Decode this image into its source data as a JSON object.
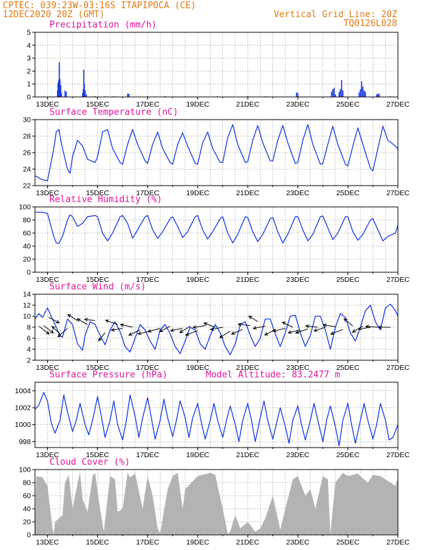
{
  "header": {
    "line1": "CPTEC:   039:23W-03:16S  ITAPIPOCA (CE)",
    "line2": "12DEC2020 20Z (GMT)",
    "grid_line": "Vertical Grid Line: 20Z",
    "code": "TQ0126L028"
  },
  "colors": {
    "header": "#e07a12",
    "title": "#e0159a",
    "series": "#1a3be0",
    "cloud": "#b3b3b3",
    "wind_arrow": "#000000"
  },
  "chart_data": [
    {
      "id": "precip",
      "type": "bar",
      "title": "Precipitation (mm/h)",
      "ylim": [
        0,
        5
      ],
      "yticks": [
        0,
        1,
        2,
        3,
        4,
        5
      ],
      "xlim": [
        0,
        14.5
      ],
      "xticks": [
        "13DEC",
        "15DEC",
        "17DEC",
        "19DEC",
        "21DEC",
        "23DEC",
        "25DEC",
        "27DEC"
      ],
      "grid": true,
      "bars": [
        [
          0.9,
          0.5
        ],
        [
          0.92,
          1.1
        ],
        [
          0.95,
          1.3
        ],
        [
          0.97,
          2.7
        ],
        [
          1.0,
          1.4
        ],
        [
          1.03,
          0.9
        ],
        [
          1.06,
          0.3
        ],
        [
          1.2,
          0.5
        ],
        [
          1.25,
          0.4
        ],
        [
          1.9,
          0.3
        ],
        [
          1.93,
          0.6
        ],
        [
          1.95,
          2.1
        ],
        [
          1.97,
          1.0
        ],
        [
          2.0,
          0.5
        ],
        [
          2.05,
          0.2
        ],
        [
          2.4,
          0.05
        ],
        [
          2.8,
          0.05
        ],
        [
          3.15,
          0.05
        ],
        [
          3.7,
          0.25
        ],
        [
          3.75,
          0.25
        ],
        [
          4.5,
          0.05
        ],
        [
          5.2,
          0.05
        ],
        [
          6.0,
          0.05
        ],
        [
          7.3,
          0.05
        ],
        [
          8.5,
          0.05
        ],
        [
          9.2,
          0.05
        ],
        [
          10.45,
          0.35
        ],
        [
          10.5,
          0.3
        ],
        [
          11.85,
          0.4
        ],
        [
          11.9,
          0.6
        ],
        [
          11.95,
          0.7
        ],
        [
          12.0,
          0.2
        ],
        [
          12.15,
          0.4
        ],
        [
          12.2,
          0.6
        ],
        [
          12.25,
          1.3
        ],
        [
          12.3,
          0.5
        ],
        [
          12.95,
          0.35
        ],
        [
          13.0,
          0.6
        ],
        [
          13.05,
          1.2
        ],
        [
          13.1,
          0.8
        ],
        [
          13.15,
          0.5
        ],
        [
          13.2,
          0.4
        ],
        [
          13.65,
          0.2
        ],
        [
          13.7,
          0.25
        ],
        [
          13.75,
          0.25
        ],
        [
          14.2,
          0.05
        ]
      ]
    },
    {
      "id": "temperature",
      "type": "line",
      "title": "Surface Temperature (nC)",
      "ylim": [
        22,
        30
      ],
      "yticks": [
        22,
        24,
        26,
        28,
        30
      ],
      "xlim": [
        0,
        14.5
      ],
      "xticks": [
        "13DEC",
        "15DEC",
        "17DEC",
        "19DEC",
        "21DEC",
        "23DEC",
        "25DEC",
        "27DEC"
      ],
      "grid": true,
      "x": [
        0,
        0.3,
        0.5,
        0.75,
        0.85,
        0.95,
        1.1,
        1.3,
        1.4,
        1.5,
        1.7,
        1.9,
        2.1,
        2.4,
        2.5,
        2.7,
        2.9,
        3.1,
        3.4,
        3.5,
        3.7,
        3.9,
        4.1,
        4.4,
        4.5,
        4.7,
        4.9,
        5.1,
        5.4,
        5.5,
        5.7,
        5.9,
        6.1,
        6.4,
        6.5,
        6.7,
        6.9,
        7.1,
        7.4,
        7.5,
        7.7,
        7.9,
        8.1,
        8.4,
        8.5,
        8.7,
        8.9,
        9.1,
        9.4,
        9.5,
        9.7,
        9.9,
        10.1,
        10.4,
        10.5,
        10.7,
        10.9,
        11.1,
        11.4,
        11.5,
        11.7,
        11.9,
        12.1,
        12.4,
        12.5,
        12.7,
        12.9,
        13.1,
        13.4,
        13.5,
        13.7,
        13.9,
        14.1,
        14.4,
        14.5
      ],
      "y": [
        23.2,
        22.7,
        22.6,
        26.5,
        28.5,
        28.8,
        26.5,
        24.0,
        23.5,
        25.5,
        27.5,
        26.8,
        25.2,
        24.8,
        25.5,
        28.5,
        28.8,
        26.5,
        24.8,
        24.6,
        27.0,
        28.8,
        27.0,
        25.0,
        24.7,
        27.0,
        28.5,
        26.5,
        24.8,
        24.6,
        27.0,
        28.4,
        26.8,
        24.7,
        24.6,
        27.2,
        28.5,
        26.5,
        24.8,
        24.8,
        27.8,
        29.4,
        27.0,
        24.8,
        24.9,
        27.5,
        29.3,
        27.2,
        25.0,
        25.0,
        27.5,
        29.3,
        27.2,
        24.7,
        24.8,
        27.5,
        29.4,
        27.0,
        24.6,
        24.7,
        27.0,
        29.2,
        27.0,
        24.6,
        24.4,
        26.8,
        29.0,
        27.0,
        24.1,
        23.8,
        26.5,
        29.2,
        27.5,
        26.8,
        26.4
      ]
    },
    {
      "id": "humidity",
      "type": "line",
      "title": "Relative Humidity (%)",
      "ylim": [
        0,
        100
      ],
      "yticks": [
        0,
        20,
        40,
        60,
        80,
        100
      ],
      "xlim": [
        0,
        14.5
      ],
      "xticks": [
        "13DEC",
        "15DEC",
        "17DEC",
        "19DEC",
        "21DEC",
        "23DEC",
        "25DEC",
        "27DEC"
      ],
      "grid": true,
      "x": [
        0,
        0.3,
        0.5,
        0.75,
        0.85,
        0.95,
        1.1,
        1.3,
        1.4,
        1.5,
        1.7,
        1.9,
        2.1,
        2.4,
        2.5,
        2.7,
        2.9,
        3.1,
        3.4,
        3.5,
        3.7,
        3.9,
        4.1,
        4.4,
        4.5,
        4.7,
        4.9,
        5.1,
        5.4,
        5.5,
        5.7,
        5.9,
        6.1,
        6.4,
        6.5,
        6.7,
        6.9,
        7.1,
        7.4,
        7.5,
        7.7,
        7.9,
        8.1,
        8.4,
        8.5,
        8.7,
        8.9,
        9.1,
        9.4,
        9.5,
        9.7,
        9.9,
        10.1,
        10.4,
        10.5,
        10.7,
        10.9,
        11.1,
        11.4,
        11.5,
        11.7,
        11.9,
        12.1,
        12.4,
        12.5,
        12.7,
        12.9,
        13.1,
        13.4,
        13.5,
        13.7,
        13.9,
        14.1,
        14.4,
        14.5
      ],
      "y": [
        92,
        92,
        90,
        55,
        45,
        44,
        55,
        80,
        88,
        85,
        70,
        75,
        85,
        87,
        85,
        60,
        48,
        60,
        85,
        87,
        75,
        52,
        65,
        85,
        87,
        65,
        52,
        62,
        82,
        85,
        70,
        53,
        62,
        85,
        87,
        65,
        51,
        62,
        82,
        85,
        60,
        45,
        58,
        85,
        84,
        62,
        47,
        58,
        82,
        84,
        62,
        45,
        58,
        85,
        85,
        65,
        48,
        58,
        85,
        86,
        68,
        50,
        60,
        85,
        85,
        62,
        49,
        58,
        80,
        82,
        65,
        48,
        55,
        60,
        72
      ]
    },
    {
      "id": "wind",
      "type": "line",
      "title": "Surface Wind (m/s)",
      "ylim": [
        2,
        14
      ],
      "yticks": [
        2,
        4,
        6,
        8,
        10,
        12,
        14
      ],
      "xlim": [
        0,
        14.5
      ],
      "xticks": [
        "13DEC",
        "15DEC",
        "17DEC",
        "19DEC",
        "21DEC",
        "23DEC",
        "25DEC",
        "27DEC"
      ],
      "grid": true,
      "x": [
        0,
        0.15,
        0.3,
        0.5,
        0.6,
        0.8,
        1.0,
        1.1,
        1.3,
        1.5,
        1.7,
        1.9,
        2.0,
        2.2,
        2.4,
        2.6,
        2.8,
        3.0,
        3.2,
        3.4,
        3.6,
        3.8,
        4.0,
        4.2,
        4.4,
        4.6,
        4.8,
        5.0,
        5.2,
        5.4,
        5.6,
        5.8,
        6.0,
        6.2,
        6.4,
        6.6,
        6.8,
        7.0,
        7.2,
        7.4,
        7.6,
        7.8,
        8.0,
        8.2,
        8.4,
        8.6,
        8.8,
        9.0,
        9.2,
        9.4,
        9.6,
        9.8,
        10.0,
        10.2,
        10.4,
        10.6,
        10.8,
        11.0,
        11.2,
        11.4,
        11.6,
        11.8,
        12.0,
        12.2,
        12.4,
        12.6,
        12.8,
        13.0,
        13.2,
        13.4,
        13.6,
        13.8,
        14.0,
        14.2,
        14.4,
        14.5
      ],
      "y": [
        9.5,
        10.5,
        9.8,
        11.5,
        10.5,
        8.5,
        6.5,
        6.2,
        9.5,
        8.5,
        5.0,
        3.8,
        6.5,
        9.0,
        8.5,
        6.5,
        4.8,
        7.5,
        9.0,
        7.2,
        4.5,
        3.5,
        6.0,
        8.5,
        7.5,
        5.5,
        4.0,
        7.5,
        8.5,
        6.8,
        4.5,
        3.2,
        5.5,
        8.0,
        7.5,
        5.0,
        4.0,
        6.5,
        8.5,
        7.0,
        4.5,
        3.0,
        5.0,
        8.5,
        9.0,
        6.5,
        4.5,
        6.0,
        9.5,
        9.5,
        6.8,
        4.5,
        7.0,
        10.0,
        10.2,
        7.0,
        4.5,
        6.5,
        10.0,
        10.0,
        7.5,
        4.0,
        8.0,
        10.5,
        9.8,
        7.0,
        5.5,
        8.0,
        11.0,
        12.0,
        9.0,
        7.5,
        11.5,
        12.2,
        11.0,
        10.0
      ],
      "arrows": [
        [
          0.15,
          8.2,
          1.3,
          -1.7
        ],
        [
          0.35,
          8.3,
          1.2,
          -1.6
        ],
        [
          0.55,
          9.8,
          1.3,
          -1.2
        ],
        [
          1.0,
          6.8,
          -1.0,
          1.6
        ],
        [
          1.3,
          7.8,
          -1.2,
          -1.8
        ],
        [
          1.7,
          9.2,
          -1.2,
          1.3
        ],
        [
          2.1,
          8.5,
          -1.3,
          1.2
        ],
        [
          2.4,
          9.2,
          -1.3,
          0.3
        ],
        [
          2.8,
          7.0,
          -0.8,
          -1.7
        ],
        [
          3.3,
          8.5,
          -1.5,
          0.9
        ],
        [
          3.5,
          7.8,
          -1.4,
          -0.4
        ],
        [
          3.9,
          8.0,
          -1.5,
          0.6
        ],
        [
          4.2,
          7.5,
          -1.4,
          -1.1
        ],
        [
          4.6,
          7.3,
          -1.5,
          -0.6
        ],
        [
          5.0,
          7.8,
          -1.5,
          -0.7
        ],
        [
          5.4,
          8.2,
          -1.3,
          -1.2
        ],
        [
          5.9,
          7.8,
          -1.5,
          -0.5
        ],
        [
          6.2,
          8.2,
          -1.3,
          -1.4
        ],
        [
          6.5,
          7.4,
          -1.5,
          -1.0
        ],
        [
          6.8,
          8.3,
          -1.5,
          -0.4
        ],
        [
          7.2,
          8.0,
          -1.4,
          0.9
        ],
        [
          7.5,
          8.0,
          -1.5,
          -0.5
        ],
        [
          7.8,
          7.3,
          -1.3,
          -1.4
        ],
        [
          8.3,
          7.6,
          -1.4,
          -1.0
        ],
        [
          8.6,
          8.3,
          -1.5,
          0.3
        ],
        [
          8.9,
          9.0,
          -1.1,
          1.2
        ],
        [
          9.2,
          8.2,
          -1.5,
          -0.5
        ],
        [
          9.6,
          7.6,
          -1.3,
          -1.2
        ],
        [
          10.0,
          7.8,
          -1.5,
          -0.6
        ],
        [
          10.3,
          8.0,
          -1.3,
          1.1
        ],
        [
          10.6,
          7.5,
          -1.5,
          -0.6
        ],
        [
          10.9,
          7.7,
          -1.5,
          -0.9
        ],
        [
          11.3,
          8.0,
          -1.5,
          0.3
        ],
        [
          11.6,
          8.0,
          -1.4,
          -0.8
        ],
        [
          12.0,
          8.1,
          -1.5,
          0.4
        ],
        [
          12.3,
          7.6,
          -1.5,
          -1.0
        ],
        [
          12.7,
          8.2,
          -1.1,
          1.6
        ],
        [
          13.1,
          8.2,
          -1.3,
          -1.3
        ],
        [
          13.4,
          8.0,
          -1.5,
          -0.4
        ],
        [
          13.7,
          8.0,
          -1.5,
          0.2
        ],
        [
          14.2,
          8.0,
          -1.5,
          0.0
        ]
      ]
    },
    {
      "id": "pressure",
      "type": "line",
      "title": "Surface Pressure (hPa)",
      "annotation": "Model Altitude: 83.2477 m",
      "ylim": [
        997.3,
        1005
      ],
      "yticks": [
        998,
        1000,
        1002,
        1004
      ],
      "xlim": [
        0,
        14.5
      ],
      "xticks": [
        "13DEC",
        "15DEC",
        "17DEC",
        "19DEC",
        "21DEC",
        "23DEC",
        "25DEC",
        "27DEC"
      ],
      "grid": true,
      "x": [
        0,
        0.15,
        0.35,
        0.5,
        0.65,
        0.8,
        1.0,
        1.15,
        1.3,
        1.5,
        1.65,
        1.8,
        2.0,
        2.15,
        2.3,
        2.5,
        2.65,
        2.8,
        3.0,
        3.15,
        3.3,
        3.5,
        3.65,
        3.8,
        4.0,
        4.15,
        4.3,
        4.5,
        4.65,
        4.8,
        5.0,
        5.15,
        5.3,
        5.5,
        5.65,
        5.8,
        6.0,
        6.15,
        6.3,
        6.5,
        6.65,
        6.8,
        7.0,
        7.15,
        7.3,
        7.5,
        7.65,
        7.8,
        8.0,
        8.15,
        8.3,
        8.5,
        8.65,
        8.8,
        9.0,
        9.15,
        9.3,
        9.5,
        9.65,
        9.8,
        10.0,
        10.15,
        10.3,
        10.5,
        10.65,
        10.8,
        11.0,
        11.15,
        11.3,
        11.5,
        11.65,
        11.8,
        12.0,
        12.15,
        12.3,
        12.5,
        12.65,
        12.8,
        13.0,
        13.15,
        13.3,
        13.5,
        13.65,
        13.8,
        14.0,
        14.15,
        14.3,
        14.5
      ],
      "y": [
        1001.8,
        1002.3,
        1003.8,
        1002.8,
        1000.2,
        999.0,
        1000.5,
        1003.5,
        1001.5,
        999.2,
        1000.5,
        1002.5,
        1000.0,
        998.8,
        1000.5,
        1003.3,
        1001.0,
        998.5,
        1000.5,
        1002.8,
        1000.0,
        998.2,
        1000.5,
        1003.5,
        1001.0,
        998.5,
        1000.8,
        1003.2,
        1000.8,
        998.3,
        1000.5,
        1003.0,
        1000.8,
        998.6,
        1000.5,
        1002.8,
        1000.8,
        998.5,
        1000.8,
        1002.5,
        1000.2,
        998.3,
        1000.5,
        1002.5,
        1000.5,
        998.5,
        1000.5,
        1002.2,
        1000.0,
        998.0,
        1000.5,
        1002.5,
        1000.5,
        998.0,
        1000.8,
        1002.8,
        1000.5,
        998.3,
        1000.2,
        1002.0,
        999.8,
        997.8,
        1000.5,
        1002.2,
        1000.0,
        998.2,
        1000.5,
        1002.5,
        1000.5,
        998.0,
        1000.5,
        1002.2,
        999.8,
        997.5,
        1000.5,
        1002.5,
        1000.0,
        997.8,
        1000.5,
        1002.5,
        1000.5,
        998.3,
        1000.0,
        1002.5,
        1000.5,
        998.2,
        998.5,
        1000.0
      ]
    },
    {
      "id": "cloud",
      "type": "area",
      "title": "Cloud Cover (%)",
      "ylim": [
        0,
        100
      ],
      "yticks": [
        0,
        20,
        40,
        60,
        80,
        100
      ],
      "xlim": [
        0,
        14.5
      ],
      "xticks": [
        "13DEC",
        "15DEC",
        "17DEC",
        "19DEC",
        "21DEC",
        "23DEC",
        "25DEC",
        "27DEC"
      ],
      "grid": true,
      "x": [
        0,
        0.05,
        0.3,
        0.5,
        0.7,
        0.75,
        0.8,
        1.1,
        1.2,
        1.35,
        1.5,
        1.6,
        1.8,
        1.9,
        2.1,
        2.3,
        2.4,
        2.6,
        2.75,
        3.0,
        3.2,
        3.3,
        3.5,
        3.7,
        3.8,
        4.0,
        4.3,
        4.5,
        4.7,
        4.9,
        5.0,
        5.3,
        5.5,
        5.7,
        5.9,
        6.0,
        6.5,
        7.0,
        7.2,
        7.5,
        7.7,
        7.8,
        8.0,
        8.2,
        8.5,
        8.8,
        9.0,
        9.2,
        9.5,
        9.8,
        10.0,
        10.3,
        10.5,
        10.8,
        11.0,
        11.2,
        11.5,
        11.7,
        11.8,
        12.0,
        12.2,
        12.3,
        12.5,
        12.7,
        12.9,
        13.0,
        13.3,
        13.5,
        13.8,
        14.0,
        14.2,
        14.4,
        14.5
      ],
      "y": [
        0,
        90,
        88,
        75,
        10,
        2,
        20,
        30,
        80,
        92,
        40,
        60,
        96,
        55,
        35,
        90,
        95,
        40,
        5,
        90,
        85,
        35,
        40,
        95,
        88,
        94,
        40,
        90,
        60,
        10,
        2,
        70,
        90,
        95,
        40,
        70,
        90,
        95,
        92,
        40,
        2,
        5,
        30,
        10,
        20,
        5,
        10,
        25,
        60,
        8,
        40,
        85,
        90,
        60,
        70,
        40,
        90,
        85,
        2,
        80,
        90,
        95,
        90,
        92,
        94,
        90,
        80,
        92,
        90,
        85,
        80,
        75,
        88
      ]
    }
  ]
}
